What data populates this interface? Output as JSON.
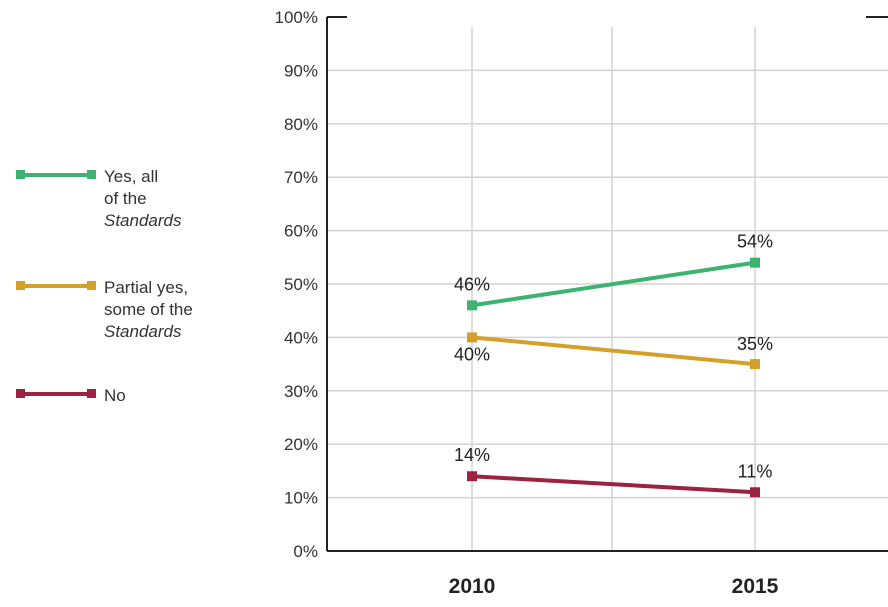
{
  "chart_data": {
    "type": "line",
    "categories": [
      "2010",
      "2015"
    ],
    "ylim": [
      0,
      100
    ],
    "yticks": [
      "0%",
      "10%",
      "20%",
      "30%",
      "40%",
      "50%",
      "60%",
      "70%",
      "80%",
      "90%",
      "100%"
    ],
    "grid": true,
    "legend_position": "left",
    "series": [
      {
        "name": "Yes, all of the Standards",
        "values": [
          46,
          54
        ],
        "labels": [
          "46%",
          "54%"
        ],
        "color": "#3cb371"
      },
      {
        "name": "Partial yes, some of the Standards",
        "values": [
          40,
          35
        ],
        "labels": [
          "40%",
          "35%"
        ],
        "color": "#d4a02a"
      },
      {
        "name": "No",
        "values": [
          14,
          11
        ],
        "labels": [
          "14%",
          "11%"
        ],
        "color": "#9b2240"
      }
    ]
  },
  "legend": {
    "items": [
      {
        "line1": "Yes, all",
        "line2": "of the",
        "line3": "Standards",
        "color": "#3cb371"
      },
      {
        "line1": "Partial yes,",
        "line2": "some of the",
        "line3": "Standards",
        "color": "#d4a02a"
      },
      {
        "line1": "No",
        "line2": "",
        "line3": "",
        "color": "#9b2240"
      }
    ]
  }
}
